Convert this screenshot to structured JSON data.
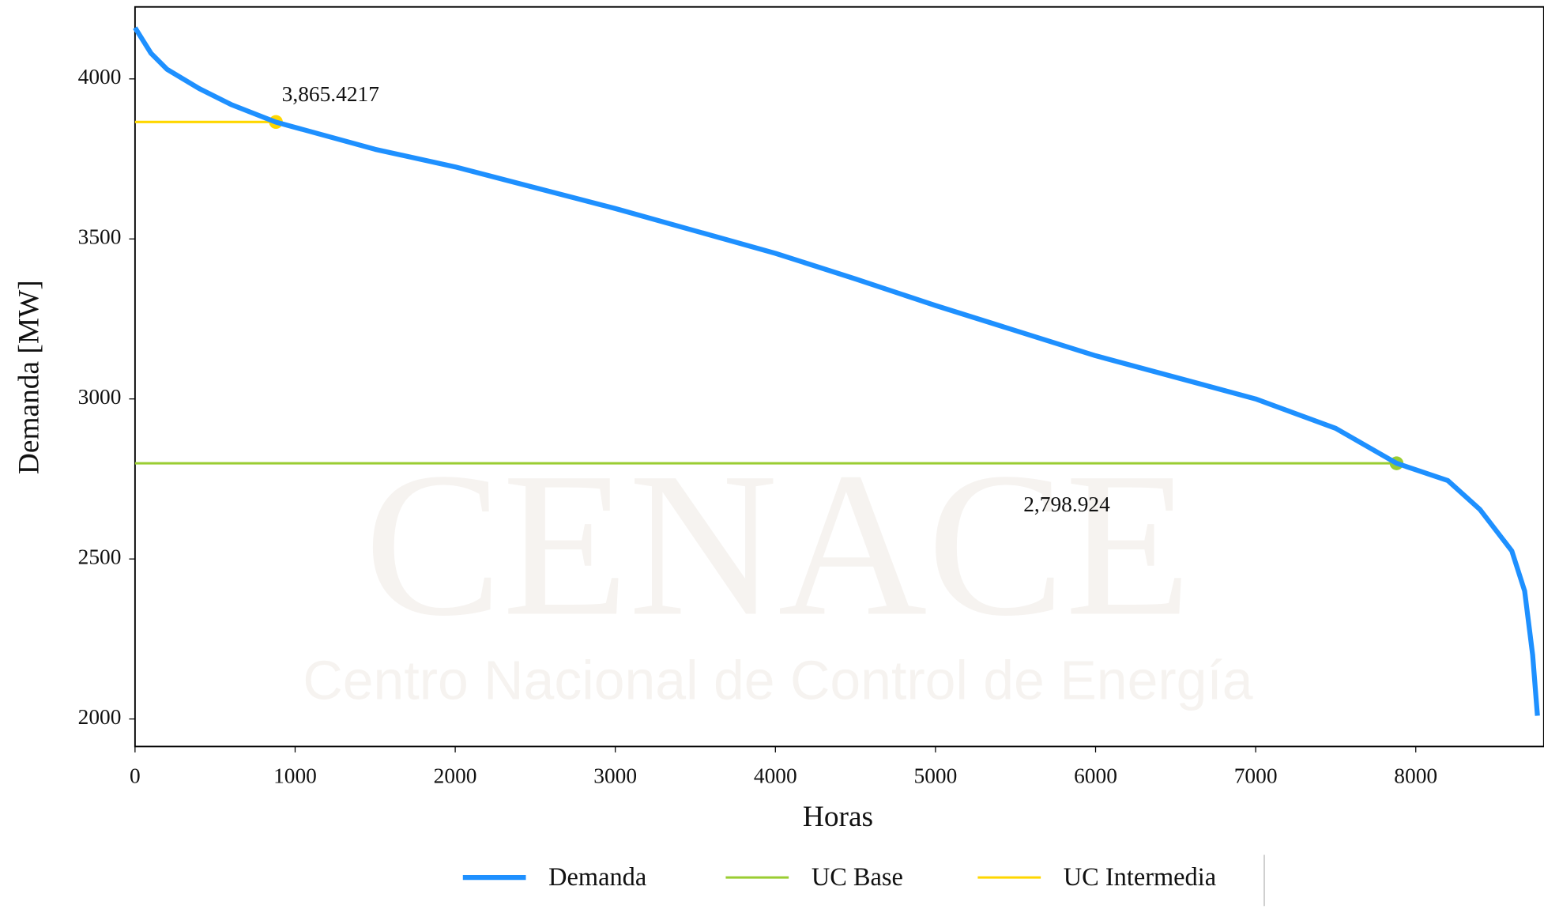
{
  "chart_data": {
    "type": "line",
    "xlabel": "Horas",
    "ylabel": "Demanda [MW]",
    "watermark": [
      "CENACE",
      "Centro Nacional de Control de Energía"
    ],
    "xlim": [
      0,
      8800
    ],
    "ylim": [
      1914,
      4225
    ],
    "xticks": [
      0,
      1000,
      2000,
      3000,
      4000,
      5000,
      6000,
      7000,
      8000
    ],
    "yticks": [
      2000,
      2500,
      3000,
      3500,
      4000
    ],
    "legend": "lower center",
    "series": [
      {
        "name": "Demanda",
        "color": "#1e90ff",
        "x": [
          0,
          50,
          100,
          200,
          400,
          600,
          880,
          1500,
          2000,
          3000,
          4000,
          4500,
          5000,
          6000,
          7000,
          7500,
          7880,
          8200,
          8400,
          8600,
          8680,
          8730,
          8760
        ],
        "values": [
          4160,
          4120,
          4080,
          4030,
          3970,
          3920,
          3865,
          3780,
          3725,
          3595,
          3455,
          3375,
          3292,
          3135,
          3000,
          2908,
          2799,
          2745,
          2655,
          2525,
          2400,
          2200,
          2010
        ]
      },
      {
        "name": "UC Base",
        "color": "#9acd32",
        "x": [
          0,
          7880
        ],
        "values": [
          2798.924,
          2798.924
        ]
      },
      {
        "name": "UC Intermedia",
        "color": "#ffd700",
        "x": [
          0,
          880
        ],
        "values": [
          3865.4217,
          3865.4217
        ]
      }
    ],
    "annotations": [
      {
        "text": "3,865.4217",
        "x": 880,
        "y": 3865.4217
      },
      {
        "text": "2,798.924",
        "x": 7880,
        "y": 2798.924
      }
    ]
  }
}
